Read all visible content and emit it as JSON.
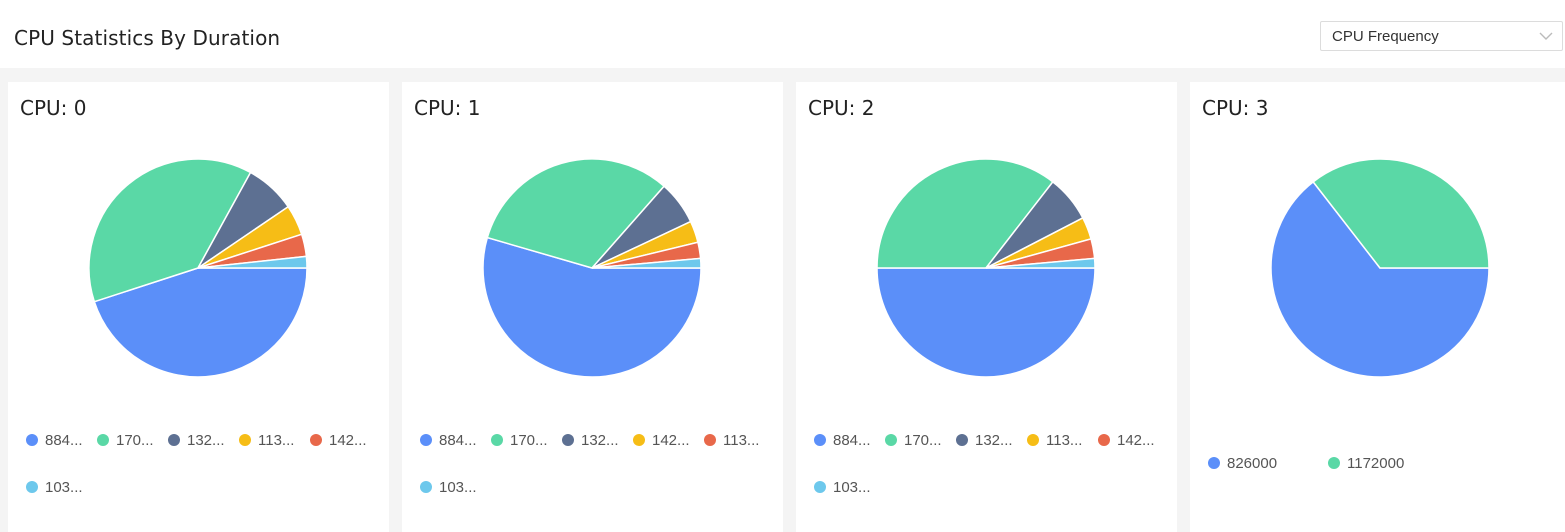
{
  "header": {
    "title": "CPU Statistics By Duration",
    "metric_select": {
      "value": "CPU Frequency"
    }
  },
  "colors": {
    "palette": [
      "#5b8ff9",
      "#5ad8a6",
      "#5d7092",
      "#f6bd16",
      "#e8684a",
      "#6dc8ec"
    ]
  },
  "chart_data": [
    {
      "type": "pie",
      "title": "CPU: 0",
      "categories": [
        "884...",
        "170...",
        "132...",
        "113...",
        "142...",
        "103..."
      ],
      "values": [
        45.0,
        38.0,
        7.5,
        4.5,
        3.3,
        1.7
      ]
    },
    {
      "type": "pie",
      "title": "CPU: 1",
      "categories": [
        "884...",
        "170...",
        "132...",
        "142...",
        "113...",
        "103..."
      ],
      "values": [
        54.5,
        32.0,
        6.5,
        3.2,
        2.4,
        1.4
      ]
    },
    {
      "type": "pie",
      "title": "CPU: 2",
      "categories": [
        "884...",
        "170...",
        "132...",
        "113...",
        "142...",
        "103..."
      ],
      "values": [
        50.0,
        35.5,
        6.9,
        3.3,
        2.9,
        1.4
      ]
    },
    {
      "type": "pie",
      "title": "CPU: 3",
      "categories": [
        "826000",
        "1172000"
      ],
      "values": [
        64.5,
        35.5
      ]
    }
  ]
}
